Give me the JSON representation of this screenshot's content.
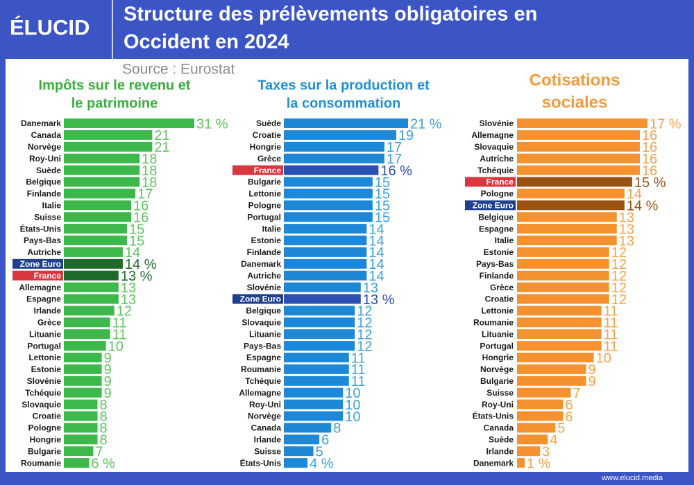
{
  "header": {
    "logo": "ÉLUCID",
    "title": [
      "Structure des prélèvements obligatoires en",
      "Occident en 2024"
    ],
    "source": "Source : Eurostat"
  },
  "footer": "www.elucid.media",
  "chart_data": [
    {
      "type": "bar",
      "orientation": "horizontal",
      "title": [
        "Impôts sur le revenu et",
        "le patrimoine"
      ],
      "color": "#3cb94a",
      "text_color": "#5ec45e",
      "highlight_color": "#1d6a2a",
      "title_color": "#3aae3e",
      "categories": [
        "Danemark",
        "Canada",
        "Norvège",
        "Roy-Uni",
        "Suède",
        "Belgique",
        "Finlande",
        "Italie",
        "Suisse",
        "États-Unis",
        "Pays-Bas",
        "Autriche",
        "Zone Euro",
        "France",
        "Allemagne",
        "Espagne",
        "Irlande",
        "Grèce",
        "Lituanie",
        "Portugal",
        "Lettonie",
        "Estonie",
        "Slovénie",
        "Tchéquie",
        "Slovaquie",
        "Croatie",
        "Pologne",
        "Hongrie",
        "Bulgarie",
        "Roumanie"
      ],
      "values": [
        31,
        21,
        21,
        18,
        18,
        18,
        17,
        16,
        16,
        15,
        15,
        14,
        14,
        13,
        13,
        13,
        12,
        11,
        11,
        10,
        9,
        9,
        9,
        9,
        8,
        8,
        8,
        8,
        7,
        6
      ],
      "value_labels": [
        "31 %",
        "21",
        "21",
        "18",
        "18",
        "18",
        "17",
        "16",
        "16",
        "15",
        "15",
        "14",
        "14 %",
        "13 %",
        "13",
        "13",
        "12",
        "11",
        "11",
        "10",
        "9",
        "9",
        "9",
        "9",
        "8",
        "8",
        "8",
        "8",
        "7",
        "6 %"
      ],
      "tag_colors": [
        null,
        null,
        null,
        null,
        null,
        null,
        null,
        null,
        null,
        null,
        null,
        null,
        "#1f3f8f",
        "#d9363e",
        null,
        null,
        null,
        null,
        null,
        null,
        null,
        null,
        null,
        null,
        null,
        null,
        null,
        null,
        null,
        null
      ]
    },
    {
      "type": "bar",
      "orientation": "horizontal",
      "title": [
        "Taxes sur la production et",
        "la consommation"
      ],
      "color": "#1e88d8",
      "text_color": "#3aa0e0",
      "highlight_color": "#2a50b4",
      "title_color": "#1f8fd6",
      "categories": [
        "Suède",
        "Croatie",
        "Hongrie",
        "Grèce",
        "France",
        "Bulgarie",
        "Lettonie",
        "Pologne",
        "Portugal",
        "Italie",
        "Estonie",
        "Finlande",
        "Danemark",
        "Autriche",
        "Slovénie",
        "Zone Euro",
        "Belgique",
        "Slovaquie",
        "Lituanie",
        "Pays-Bas",
        "Espagne",
        "Roumanie",
        "Tchéquie",
        "Allemagne",
        "Roy-Uni",
        "Norvège",
        "Canada",
        "Irlande",
        "Suisse",
        "États-Unis"
      ],
      "values": [
        21,
        19,
        17,
        17,
        16,
        15,
        15,
        15,
        15,
        14,
        14,
        14,
        14,
        14,
        13,
        13,
        12,
        12,
        12,
        12,
        11,
        11,
        11,
        10,
        10,
        10,
        8,
        6,
        5,
        4
      ],
      "value_labels": [
        "21 %",
        "19",
        "17",
        "17",
        "16 %",
        "15",
        "15",
        "15",
        "15",
        "14",
        "14",
        "14",
        "14",
        "14",
        "13",
        "13 %",
        "12",
        "12",
        "12",
        "12",
        "11",
        "11",
        "11",
        "10",
        "10",
        "10",
        "8",
        "6",
        "5",
        "4 %"
      ],
      "tag_colors": [
        null,
        null,
        null,
        null,
        "#d9363e",
        null,
        null,
        null,
        null,
        null,
        null,
        null,
        null,
        null,
        null,
        "#1f3f8f",
        null,
        null,
        null,
        null,
        null,
        null,
        null,
        null,
        null,
        null,
        null,
        null,
        null,
        null
      ]
    },
    {
      "type": "bar",
      "orientation": "horizontal",
      "title": [
        "Cotisations",
        "sociales"
      ],
      "color": "#f5922f",
      "text_color": "#f5a24c",
      "highlight_color": "#9a5210",
      "title_color": "#f39a3a",
      "categories": [
        "Slovénie",
        "Allemagne",
        "Slovaquie",
        "Autriche",
        "Tchéquie",
        "France",
        "Pologne",
        "Zone Euro",
        "Belgique",
        "Espagne",
        "Italie",
        "Estonie",
        "Pays-Bas",
        "Finlande",
        "Grèce",
        "Croatie",
        "Lettonie",
        "Roumanie",
        "Lituanie",
        "Portugal",
        "Hongrie",
        "Norvège",
        "Bulgarie",
        "Suisse",
        "Roy-Uni",
        "États-Unis",
        "Canada",
        "Suède",
        "Irlande",
        "Danemark"
      ],
      "values": [
        17,
        16,
        16,
        16,
        16,
        15,
        14,
        14,
        13,
        13,
        13,
        12,
        12,
        12,
        12,
        12,
        11,
        11,
        11,
        11,
        10,
        9,
        9,
        7,
        6,
        6,
        5,
        4,
        3,
        1
      ],
      "value_labels": [
        "17 %",
        "16",
        "16",
        "16",
        "16",
        "15 %",
        "14",
        "14 %",
        "13",
        "13",
        "13",
        "12",
        "12",
        "12",
        "12",
        "12",
        "11",
        "11",
        "11",
        "11",
        "10",
        "9",
        "9",
        "7",
        "6",
        "6",
        "5",
        "4",
        "3",
        "1 %"
      ],
      "tag_colors": [
        null,
        null,
        null,
        null,
        null,
        "#d9363e",
        null,
        "#1f3f8f",
        null,
        null,
        null,
        null,
        null,
        null,
        null,
        null,
        null,
        null,
        null,
        null,
        null,
        null,
        null,
        null,
        null,
        null,
        null,
        null,
        null,
        null
      ]
    }
  ]
}
